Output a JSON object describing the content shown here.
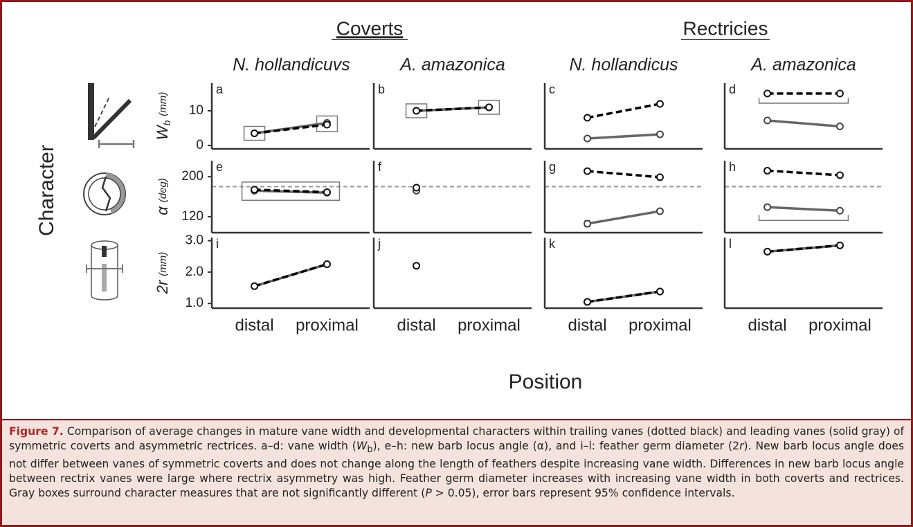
{
  "figure": {
    "groups": [
      "Coverts",
      "Rectricies"
    ],
    "columns": [
      "N. hollandicuvs",
      "A. amazonica",
      "N. hollandicus",
      "A. amazonica"
    ],
    "ylabel": "Character",
    "xlabel": "Position",
    "caption": {
      "label": "Figure 7.",
      "parts": [
        " Comparison of average changes in mature vane width and developmental characters within trailing vanes (dotted black) and leading vanes (solid gray) of symmetric coverts and asymmetric rectrices. a–d: vane width (",
        "W",
        "b",
        "), e–h: new barb locus angle (α), and i–l: feather germ diameter (2",
        "r",
        "). New barb locus angle does not differ between vanes of symmetric coverts and does not change along the length of feathers despite increasing vane width. Differences in new barb locus angle between rectrix vanes were large where rectrix asymmetry was high. Feather germ diameter increases with increasing vane width in both coverts and rectrices. Gray boxes surround character measures that are not significantly different (",
        "P",
        " > 0.05), error bars represent 95% confidence intervals."
      ]
    }
  },
  "chart_data": [
    {
      "type": "line",
      "label": "a",
      "ylim": [
        -1,
        18
      ],
      "yticks": [
        0,
        10
      ],
      "ylabel": "W",
      "ylabel_sub": "b",
      "yunit": "(mm)",
      "box": {
        "kind": "points"
      },
      "series": [
        {
          "color": "#666666",
          "dash": false,
          "values": [
            3.5,
            6.5
          ]
        },
        {
          "color": "#000000",
          "dash": true,
          "values": [
            3.5,
            6
          ]
        }
      ]
    },
    {
      "type": "line",
      "label": "b",
      "ylim": [
        -1,
        18
      ],
      "box": {
        "kind": "points"
      },
      "series": [
        {
          "color": "#666666",
          "dash": false,
          "values": [
            10,
            11
          ]
        },
        {
          "color": "#000000",
          "dash": true,
          "values": [
            10,
            11
          ]
        }
      ]
    },
    {
      "type": "line",
      "label": "c",
      "ylim": [
        -1,
        18
      ],
      "series": [
        {
          "color": "#666666",
          "dash": false,
          "values": [
            2,
            3.2
          ]
        },
        {
          "color": "#000000",
          "dash": true,
          "values": [
            8,
            12
          ]
        }
      ]
    },
    {
      "type": "line",
      "label": "d",
      "ylim": [
        -1,
        18
      ],
      "box": {
        "kind": "bracket",
        "series": 1
      },
      "series": [
        {
          "color": "#666666",
          "dash": false,
          "values": [
            7.2,
            5.5
          ]
        },
        {
          "color": "#000000",
          "dash": true,
          "values": [
            15,
            15
          ]
        }
      ]
    },
    {
      "type": "line",
      "label": "e",
      "ylim": [
        88,
        232
      ],
      "yticks": [
        120,
        200
      ],
      "ylabel": "α",
      "yunit": "(deg)",
      "ref_line": 180,
      "box": {
        "kind": "span"
      },
      "series": [
        {
          "color": "#666666",
          "dash": false,
          "values": [
            172,
            168
          ]
        },
        {
          "color": "#000000",
          "dash": true,
          "values": [
            174,
            169
          ]
        }
      ]
    },
    {
      "type": "line",
      "label": "f",
      "ylim": [
        88,
        232
      ],
      "ref_line": 180,
      "series": [
        {
          "color": "#666666",
          "dash": false,
          "values": [
            172,
            null
          ]
        },
        {
          "color": "#000000",
          "dash": true,
          "values": [
            178,
            null
          ]
        }
      ]
    },
    {
      "type": "line",
      "label": "g",
      "ylim": [
        88,
        232
      ],
      "ref_line": 180,
      "series": [
        {
          "color": "#666666",
          "dash": false,
          "values": [
            106,
            131
          ],
          "errors": [
            6,
            null
          ]
        },
        {
          "color": "#000000",
          "dash": true,
          "values": [
            211,
            199
          ]
        }
      ]
    },
    {
      "type": "line",
      "label": "h",
      "ylim": [
        88,
        232
      ],
      "ref_line": 180,
      "box": {
        "kind": "bracket",
        "series": 0
      },
      "series": [
        {
          "color": "#666666",
          "dash": false,
          "values": [
            139,
            132
          ],
          "errors": [
            4,
            null
          ]
        },
        {
          "color": "#000000",
          "dash": true,
          "values": [
            212,
            203
          ]
        }
      ]
    },
    {
      "type": "line",
      "label": "i",
      "ylim": [
        0.85,
        3.1
      ],
      "yticks": [
        {
          "value": 1,
          "label": "1.0"
        },
        {
          "value": 2,
          "label": "2.0"
        },
        {
          "value": 3,
          "label": "3.0"
        }
      ],
      "ylabel": "2r",
      "yunit": "(mm)",
      "categories": [
        "distal",
        "proximal"
      ],
      "series": [
        {
          "color": "#666666",
          "dash": false,
          "values": [
            1.55,
            2.25
          ]
        },
        {
          "color": "#000000",
          "dash": true,
          "values": [
            1.55,
            2.25
          ]
        }
      ]
    },
    {
      "type": "line",
      "label": "j",
      "ylim": [
        0.85,
        3.1
      ],
      "categories": [
        "distal",
        "proximal"
      ],
      "series": [
        {
          "color": "#000000",
          "dash": true,
          "values": [
            2.2,
            null
          ]
        }
      ]
    },
    {
      "type": "line",
      "label": "k",
      "ylim": [
        0.85,
        3.1
      ],
      "categories": [
        "distal",
        "proximal"
      ],
      "series": [
        {
          "color": "#666666",
          "dash": false,
          "values": [
            1.05,
            1.38
          ]
        },
        {
          "color": "#000000",
          "dash": true,
          "values": [
            1.05,
            1.38
          ]
        }
      ]
    },
    {
      "type": "line",
      "label": "l",
      "ylim": [
        0.85,
        3.1
      ],
      "categories": [
        "distal",
        "proximal"
      ],
      "series": [
        {
          "color": "#666666",
          "dash": false,
          "values": [
            2.65,
            2.85
          ]
        },
        {
          "color": "#000000",
          "dash": true,
          "values": [
            2.65,
            2.85
          ]
        }
      ]
    }
  ]
}
